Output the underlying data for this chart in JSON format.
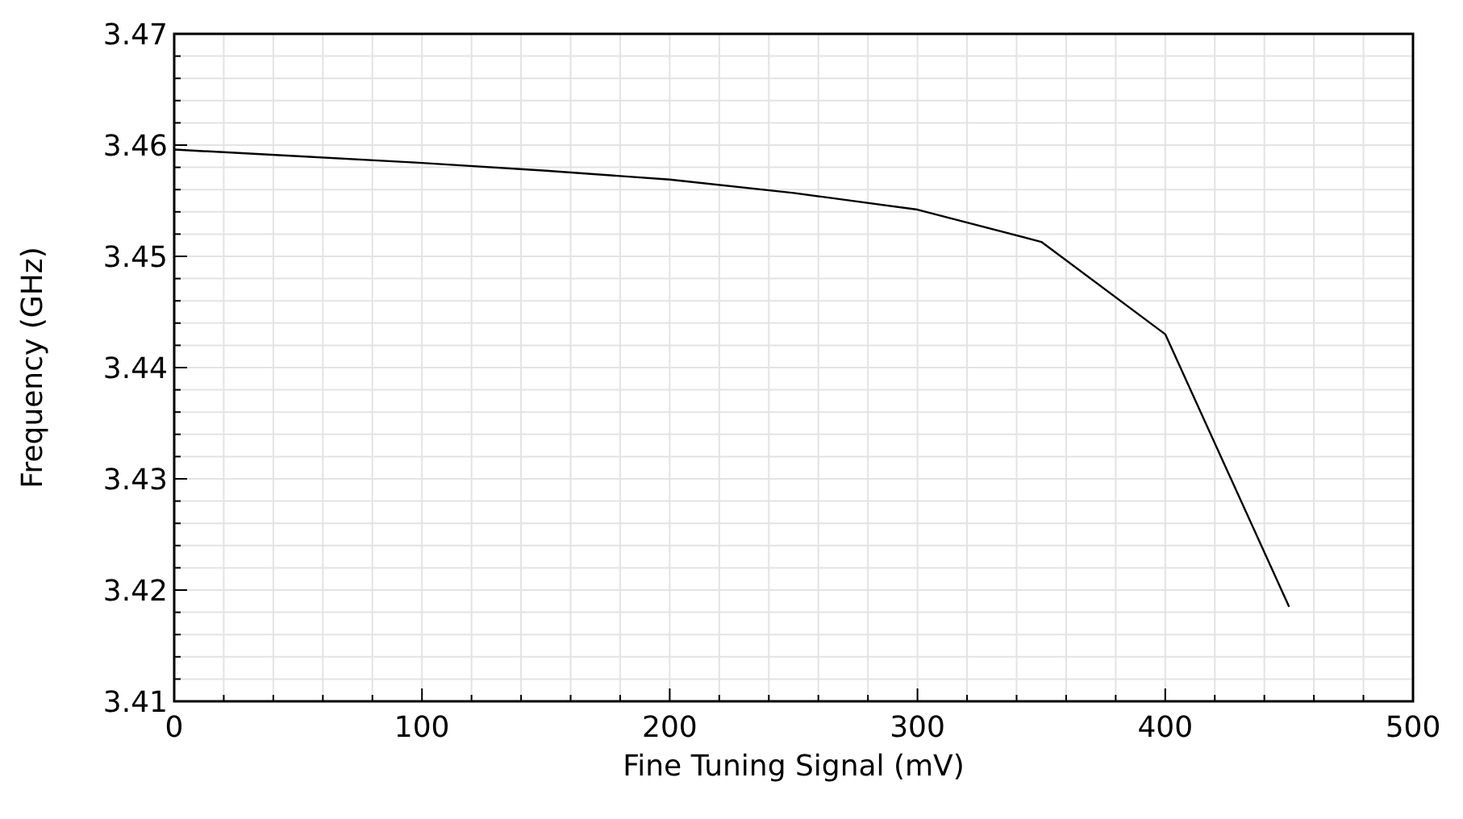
{
  "chart_data": {
    "type": "line",
    "xlabel": "Fine Tuning Signal (mV)",
    "ylabel": "Frequency (GHz)",
    "x": [
      0,
      50,
      100,
      150,
      200,
      250,
      300,
      350,
      400,
      450
    ],
    "series": [
      {
        "color": "#000000",
        "values": [
          3.4596,
          3.459,
          3.4584,
          3.4577,
          3.4569,
          3.4557,
          3.4542,
          3.4513,
          3.443,
          3.4185
        ]
      }
    ],
    "xlim": [
      0,
      500
    ],
    "xticks": [
      0,
      100,
      200,
      300,
      400,
      500
    ],
    "ylim": [
      3.41,
      3.47
    ],
    "yticks": [
      3.41,
      3.42,
      3.43,
      3.44,
      3.45,
      3.46,
      3.47
    ],
    "grid": true,
    "marker": "none",
    "line_style": "solid"
  }
}
